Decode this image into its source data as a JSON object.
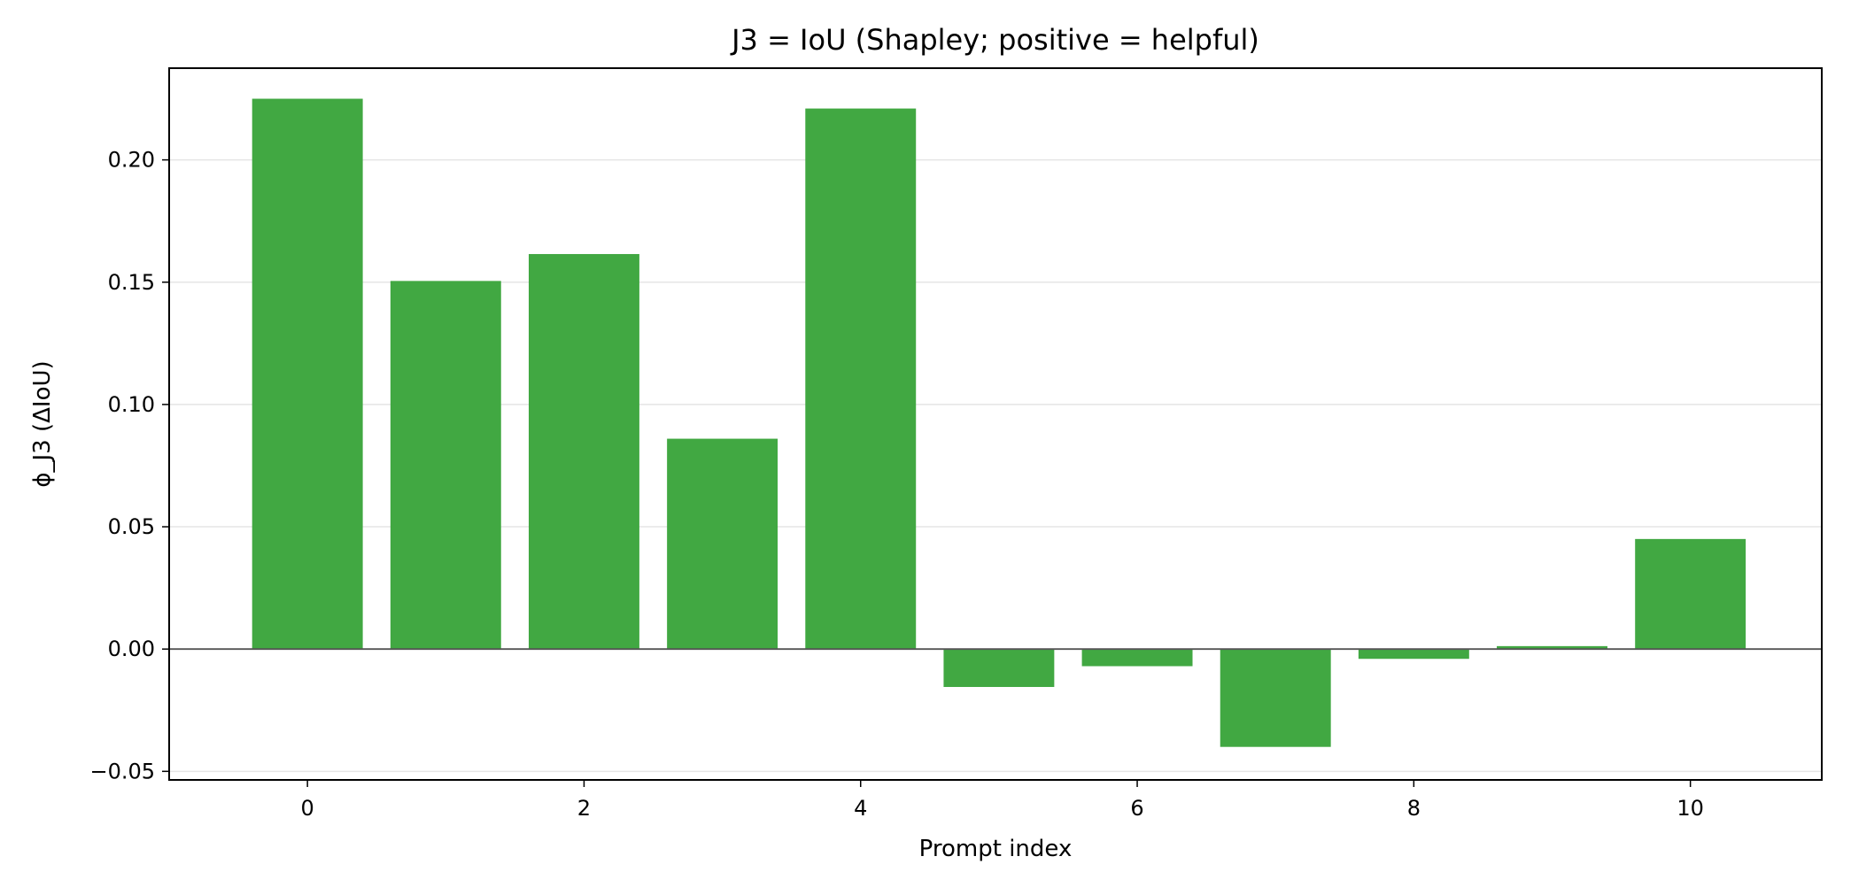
{
  "chart_data": {
    "type": "bar",
    "title": "J3 = IoU (Shapley; positive = helpful)",
    "xlabel": "Prompt index",
    "ylabel": "ϕ_J3 (ΔIoU)",
    "categories": [
      0,
      1,
      2,
      3,
      4,
      5,
      6,
      7,
      8,
      9,
      10
    ],
    "values": [
      0.225,
      0.1505,
      0.1615,
      0.086,
      0.221,
      -0.0155,
      -0.007,
      -0.04,
      -0.004,
      0.0012,
      0.045
    ],
    "xlim": [
      -1.0,
      10.95
    ],
    "ylim": [
      -0.0535,
      0.2375
    ],
    "xticks": [
      0,
      2,
      4,
      6,
      8,
      10
    ],
    "yticks": [
      -0.05,
      0.0,
      0.05,
      0.1,
      0.15,
      0.2
    ],
    "ytick_labels": [
      "−0.05",
      "0.00",
      "0.05",
      "0.10",
      "0.15",
      "0.20"
    ],
    "grid": "horizontal",
    "baseline": 0,
    "bar_color": "#41a842",
    "grid_color": "#e5e5e5",
    "baseline_color": "#555555"
  }
}
